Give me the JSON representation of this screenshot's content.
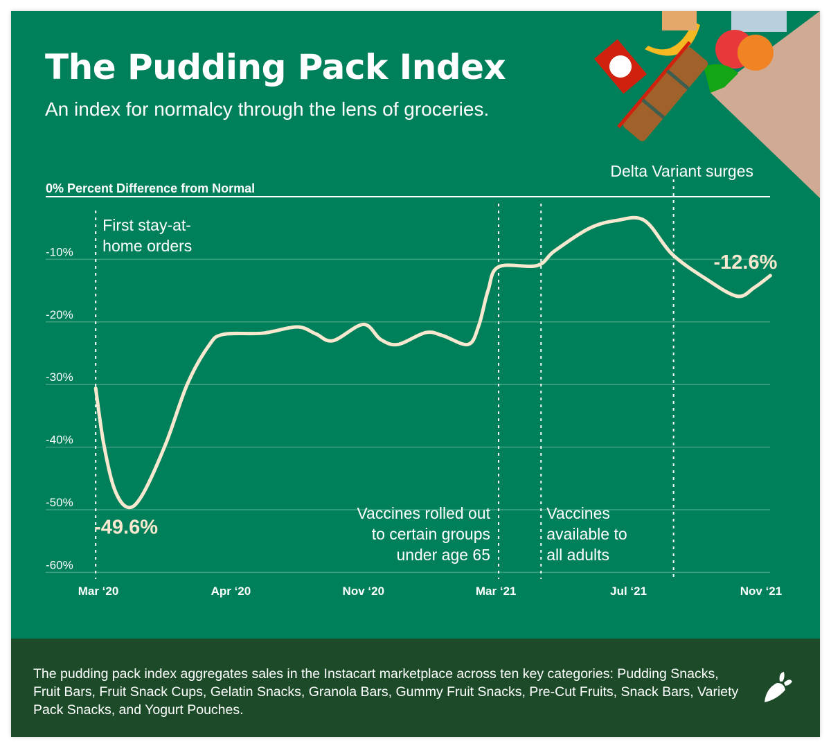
{
  "header": {
    "title": "The Pudding Pack Index",
    "subtitle": "An index for normalcy through the lens of groceries."
  },
  "colors": {
    "background": "#00805a",
    "footer": "#1d4b2a",
    "line": "#f8e8cf",
    "text": "#ffffff",
    "bag": "#d0aa93"
  },
  "chart_data": {
    "type": "line",
    "title": "The Pudding Pack Index",
    "ylabel": "0% Percent Difference from Normal",
    "ylim": [
      -60,
      0
    ],
    "yticks": [
      "-10%",
      "-20%",
      "-30%",
      "-40%",
      "-50%",
      "-60%"
    ],
    "ytick_values": [
      -10,
      -20,
      -30,
      -40,
      -50,
      -60
    ],
    "xticks": [
      "Mar ‘20",
      "Apr ‘20",
      "Nov ‘20",
      "Mar ‘21",
      "Jul ‘21",
      "Nov ‘21"
    ],
    "grid": true,
    "points": [
      [
        -0.02,
        -30.6
      ],
      [
        0.04,
        -39.4
      ],
      [
        0.12,
        -46.6
      ],
      [
        0.22,
        -49.6
      ],
      [
        0.33,
        -47.7
      ],
      [
        0.51,
        -39.4
      ],
      [
        0.67,
        -30
      ],
      [
        0.83,
        -23.9
      ],
      [
        0.94,
        -22
      ],
      [
        1.24,
        -21.8
      ],
      [
        1.5,
        -20.8
      ],
      [
        1.64,
        -21.9
      ],
      [
        1.77,
        -23
      ],
      [
        2.0,
        -20.4
      ],
      [
        2.13,
        -22.8
      ],
      [
        2.26,
        -23.6
      ],
      [
        2.47,
        -21.7
      ],
      [
        2.6,
        -22.2
      ],
      [
        2.79,
        -23.6
      ],
      [
        2.87,
        -20.6
      ],
      [
        2.94,
        -15
      ],
      [
        3.02,
        -11.2
      ],
      [
        3.31,
        -11
      ],
      [
        3.44,
        -8.7
      ],
      [
        3.7,
        -5.1
      ],
      [
        3.91,
        -3.8
      ],
      [
        4.12,
        -3.8
      ],
      [
        4.33,
        -9.2
      ],
      [
        4.59,
        -13.2
      ],
      [
        4.82,
        -15.9
      ],
      [
        4.95,
        -14.5
      ],
      [
        5.07,
        -12.6
      ]
    ],
    "data_labels": {
      "min": "-49.6%",
      "last": "-12.6%"
    },
    "events": [
      {
        "x": -0.02,
        "lines": [
          "First stay-at-",
          "home orders"
        ]
      },
      {
        "x": 3.02,
        "lines": [
          "Vaccines rolled out",
          "to certain groups",
          "under age 65"
        ]
      },
      {
        "x": 3.34,
        "lines": [
          "Vaccines",
          "available to",
          "all adults"
        ]
      },
      {
        "x": 4.34,
        "lines": [
          "Delta Variant surges"
        ]
      }
    ]
  },
  "footer": {
    "text": "The pudding pack index aggregates sales in the Instacart marketplace across ten key categories: Pudding Snacks, Fruit Bars, Fruit Snack Cups, Gelatin Snacks, Granola Bars, Gummy Fruit Snacks, Pre-Cut Fruits, Snack Bars, Variety Pack Snacks, and Yogurt Pouches."
  }
}
